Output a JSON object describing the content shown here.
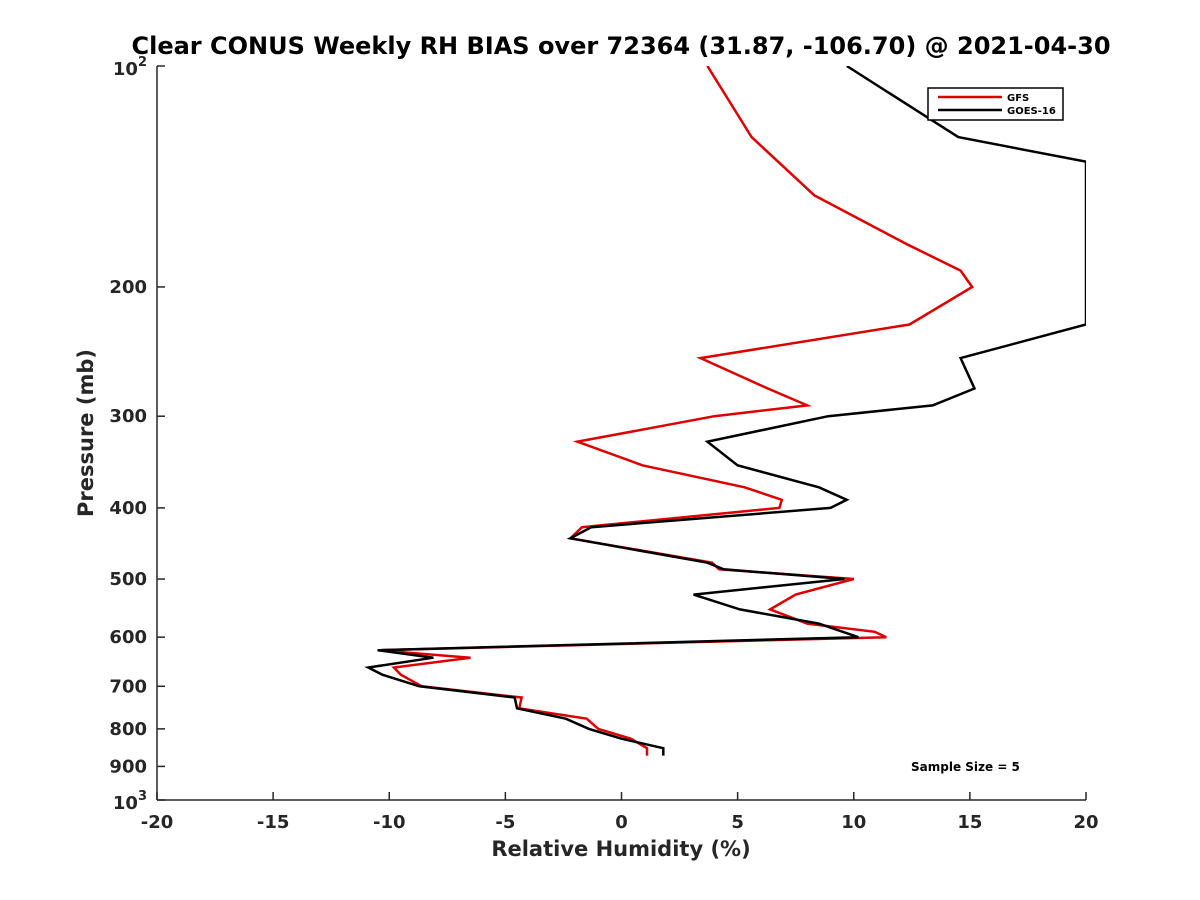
{
  "chart_data": {
    "type": "line",
    "title": "Clear CONUS Weekly RH BIAS over 72364 (31.87, -106.70) @ 2021-04-30",
    "xlabel": "Relative Humidity (%)",
    "ylabel": "Pressure (mb)",
    "xlim": [
      -20,
      20
    ],
    "ylim": [
      100,
      1000
    ],
    "y_scale": "log",
    "y_reversed": true,
    "grid": false,
    "legend_position": "top-right",
    "x_ticks": [
      "-20",
      "-15",
      "-10",
      "-5",
      "0",
      "5",
      "10",
      "15",
      "20"
    ],
    "x_tick_values": [
      -20,
      -15,
      -10,
      -5,
      0,
      5,
      10,
      15,
      20
    ],
    "y_ticks": [
      {
        "value": 100,
        "base": "10",
        "exp": "2"
      },
      {
        "value": 200,
        "label": "200"
      },
      {
        "value": 300,
        "label": "300"
      },
      {
        "value": 400,
        "label": "400"
      },
      {
        "value": 500,
        "label": "500"
      },
      {
        "value": 600,
        "label": "600"
      },
      {
        "value": 700,
        "label": "700"
      },
      {
        "value": 800,
        "label": "800"
      },
      {
        "value": 900,
        "label": "900"
      },
      {
        "value": 1000,
        "base": "10",
        "exp": "3"
      }
    ],
    "annotation": "Sample Size = 5",
    "series": [
      {
        "name": "GFS",
        "color": "#dd0000",
        "points": [
          [
            3.7,
            100
          ],
          [
            5.6,
            125
          ],
          [
            8.3,
            150
          ],
          [
            12.3,
            175
          ],
          [
            14.6,
            190
          ],
          [
            15.1,
            200
          ],
          [
            12.4,
            225
          ],
          [
            3.4,
            250
          ],
          [
            6.3,
            275
          ],
          [
            8.0,
            290
          ],
          [
            4.0,
            300
          ],
          [
            -1.9,
            325
          ],
          [
            0.9,
            350
          ],
          [
            5.3,
            375
          ],
          [
            6.9,
            390
          ],
          [
            6.8,
            400
          ],
          [
            -1.7,
            425
          ],
          [
            -2.2,
            440
          ],
          [
            3.9,
            475
          ],
          [
            4.2,
            485
          ],
          [
            10.0,
            500
          ],
          [
            7.5,
            525
          ],
          [
            6.4,
            550
          ],
          [
            8.0,
            575
          ],
          [
            10.9,
            590
          ],
          [
            11.4,
            600
          ],
          [
            -10.5,
            625
          ],
          [
            -6.5,
            640
          ],
          [
            -9.8,
            660
          ],
          [
            -9.5,
            675
          ],
          [
            -8.6,
            700
          ],
          [
            -4.3,
            725
          ],
          [
            -4.4,
            750
          ],
          [
            -1.5,
            775
          ],
          [
            -1.0,
            800
          ],
          [
            0.4,
            825
          ],
          [
            1.1,
            850
          ],
          [
            1.1,
            870
          ]
        ]
      },
      {
        "name": "GOES-16",
        "color": "#000000",
        "points": [
          [
            9.7,
            100
          ],
          [
            14.5,
            125
          ],
          [
            20.0,
            135
          ],
          [
            20.0,
            225
          ],
          [
            14.6,
            250
          ],
          [
            15.2,
            275
          ],
          [
            13.4,
            290
          ],
          [
            8.9,
            300
          ],
          [
            3.7,
            325
          ],
          [
            5.0,
            350
          ],
          [
            8.5,
            375
          ],
          [
            9.7,
            390
          ],
          [
            9.0,
            400
          ],
          [
            -1.3,
            425
          ],
          [
            -2.2,
            440
          ],
          [
            3.7,
            475
          ],
          [
            4.4,
            485
          ],
          [
            9.6,
            500
          ],
          [
            3.1,
            525
          ],
          [
            5.1,
            550
          ],
          [
            8.5,
            575
          ],
          [
            10.2,
            600
          ],
          [
            -10.5,
            625
          ],
          [
            -8.1,
            640
          ],
          [
            -10.9,
            660
          ],
          [
            -10.3,
            675
          ],
          [
            -8.7,
            700
          ],
          [
            -4.6,
            725
          ],
          [
            -4.5,
            750
          ],
          [
            -2.4,
            775
          ],
          [
            -1.4,
            800
          ],
          [
            0.0,
            825
          ],
          [
            1.8,
            850
          ],
          [
            1.8,
            870
          ]
        ]
      }
    ]
  }
}
